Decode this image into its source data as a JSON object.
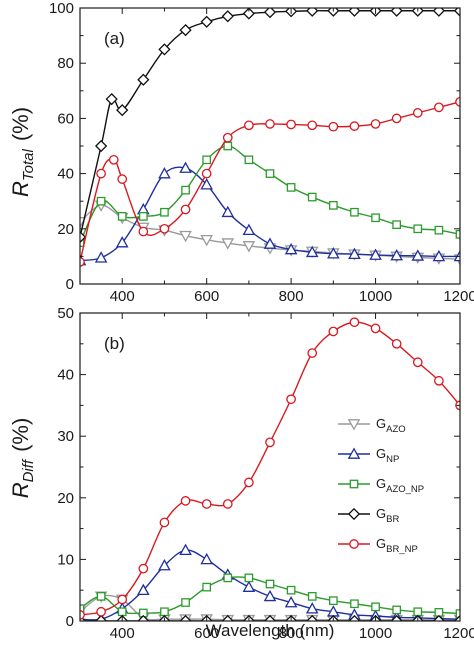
{
  "chart_data": [
    {
      "type": "line",
      "panel_label": "(a)",
      "ylabel": {
        "main": "R",
        "sub": "Total",
        "unit": "(%)"
      },
      "xlim": [
        300,
        1200
      ],
      "ylim": [
        0,
        100
      ],
      "xticks": [
        400,
        600,
        800,
        1000,
        1200
      ],
      "yticks": [
        0,
        20,
        40,
        60,
        80,
        100
      ],
      "grid": false,
      "series": [
        {
          "key": "g_azo",
          "color": "#9a9a9a",
          "marker": "triangle-down",
          "x": [
            300,
            350,
            400,
            450,
            500,
            550,
            600,
            650,
            700,
            750,
            800,
            850,
            900,
            950,
            1000,
            1050,
            1100,
            1150,
            1200
          ],
          "y": [
            22.5,
            28.5,
            24,
            20.5,
            19.5,
            17.5,
            16,
            14.8,
            13.8,
            13,
            12.3,
            11.8,
            11.2,
            10.8,
            10.4,
            10,
            9.6,
            9.3,
            9
          ]
        },
        {
          "key": "g_np",
          "color": "#1f2f9e",
          "marker": "triangle",
          "x": [
            300,
            350,
            400,
            450,
            500,
            550,
            600,
            650,
            700,
            750,
            800,
            850,
            900,
            950,
            1000,
            1050,
            1100,
            1150,
            1200
          ],
          "y": [
            8.5,
            9.5,
            15,
            27,
            40,
            42,
            36,
            26,
            19.5,
            14.5,
            12.5,
            11.5,
            11,
            10.8,
            10.5,
            10.3,
            10.2,
            10,
            10
          ]
        },
        {
          "key": "g_azo_np",
          "color": "#2d9b2d",
          "marker": "square",
          "x": [
            300,
            350,
            400,
            450,
            500,
            550,
            600,
            650,
            700,
            750,
            800,
            850,
            900,
            950,
            1000,
            1050,
            1100,
            1150,
            1200
          ],
          "y": [
            15,
            30,
            24.5,
            24.5,
            26,
            34,
            45,
            50,
            45,
            40,
            35,
            31.5,
            28.5,
            26,
            24,
            21.5,
            20,
            19.5,
            18
          ]
        },
        {
          "key": "g_br",
          "color": "#111111",
          "marker": "diamond",
          "x": [
            300,
            350,
            375,
            400,
            450,
            500,
            550,
            600,
            650,
            700,
            750,
            800,
            850,
            900,
            950,
            1000,
            1050,
            1100,
            1150,
            1200
          ],
          "y": [
            17,
            50,
            67,
            63,
            74,
            85,
            92,
            95,
            97,
            98,
            98.5,
            98.8,
            99,
            99,
            99,
            99,
            99,
            99,
            99,
            99
          ]
        },
        {
          "key": "g_br_np",
          "color": "#d9181f",
          "marker": "circle",
          "x": [
            300,
            350,
            380,
            400,
            450,
            500,
            550,
            600,
            650,
            700,
            750,
            800,
            850,
            900,
            950,
            1000,
            1050,
            1100,
            1150,
            1200
          ],
          "y": [
            8,
            40,
            45,
            38,
            19,
            20,
            27,
            40,
            53,
            57.5,
            58,
            57.8,
            57.5,
            57,
            57.2,
            58,
            60,
            62,
            64,
            66
          ]
        }
      ]
    },
    {
      "type": "line",
      "panel_label": "(b)",
      "ylabel": {
        "main": "R",
        "sub": "Diff",
        "unit": "(%)"
      },
      "xlabel": "Wavelength (nm)",
      "xlim": [
        300,
        1200
      ],
      "ylim": [
        0,
        50
      ],
      "xticks": [
        400,
        600,
        800,
        1000,
        1200
      ],
      "yticks": [
        0,
        10,
        20,
        30,
        40,
        50
      ],
      "grid": false,
      "legend_position": "center-left",
      "series": [
        {
          "key": "g_azo",
          "color": "#9a9a9a",
          "marker": "triangle-down",
          "x": [
            300,
            350,
            400,
            450,
            500,
            550,
            600,
            650,
            700,
            750,
            800,
            850,
            900,
            950,
            1000,
            1050,
            1100,
            1150,
            1200
          ],
          "y": [
            1.5,
            4,
            3.5,
            0.5,
            0.3,
            0.3,
            0.3,
            0.2,
            0.2,
            0.2,
            0.2,
            0.2,
            0.2,
            0.2,
            0.2,
            0.2,
            0.2,
            0.2,
            0.2
          ]
        },
        {
          "key": "g_np",
          "color": "#1f2f9e",
          "marker": "triangle",
          "x": [
            300,
            350,
            400,
            450,
            500,
            550,
            600,
            650,
            700,
            750,
            800,
            850,
            900,
            950,
            1000,
            1050,
            1100,
            1150,
            1200
          ],
          "y": [
            0.3,
            0.3,
            2,
            5,
            9,
            11.5,
            10,
            7.5,
            5.5,
            4,
            3,
            2,
            1.5,
            1,
            0.8,
            0.6,
            0.5,
            0.4,
            0.3
          ]
        },
        {
          "key": "g_azo_np",
          "color": "#2d9b2d",
          "marker": "square",
          "x": [
            300,
            350,
            400,
            450,
            500,
            550,
            600,
            650,
            700,
            750,
            800,
            850,
            900,
            950,
            1000,
            1050,
            1100,
            1150,
            1200
          ],
          "y": [
            2,
            4,
            1.5,
            1.3,
            1.5,
            3,
            5.5,
            7,
            7,
            6,
            5,
            4,
            3.3,
            2.8,
            2.3,
            1.8,
            1.5,
            1.4,
            1.2
          ]
        },
        {
          "key": "g_br",
          "color": "#111111",
          "marker": "diamond",
          "x": [
            300,
            350,
            400,
            450,
            500,
            550,
            600,
            650,
            700,
            750,
            800,
            850,
            900,
            950,
            1000,
            1050,
            1100,
            1150,
            1200
          ],
          "y": [
            0,
            0,
            0,
            0,
            0,
            0,
            0,
            0,
            0,
            0,
            0,
            0,
            0,
            0,
            0,
            0,
            0,
            0,
            0
          ]
        },
        {
          "key": "g_br_np",
          "color": "#d9181f",
          "marker": "circle",
          "x": [
            300,
            350,
            400,
            450,
            500,
            550,
            600,
            650,
            700,
            750,
            800,
            850,
            900,
            950,
            1000,
            1050,
            1100,
            1150,
            1200
          ],
          "y": [
            1,
            1.5,
            3.5,
            8.5,
            16,
            19.5,
            19,
            19,
            22.5,
            29,
            36,
            43.5,
            47,
            48.5,
            47.5,
            45,
            42,
            39,
            35
          ]
        }
      ]
    }
  ],
  "legend": [
    {
      "key": "g_azo",
      "main": "G",
      "sub": "AZO"
    },
    {
      "key": "g_np",
      "main": "G",
      "sub": "NP"
    },
    {
      "key": "g_azo_np",
      "main": "G",
      "sub": "AZO_NP"
    },
    {
      "key": "g_br",
      "main": "G",
      "sub": "BR"
    },
    {
      "key": "g_br_np",
      "main": "G",
      "sub": "BR_NP"
    }
  ]
}
